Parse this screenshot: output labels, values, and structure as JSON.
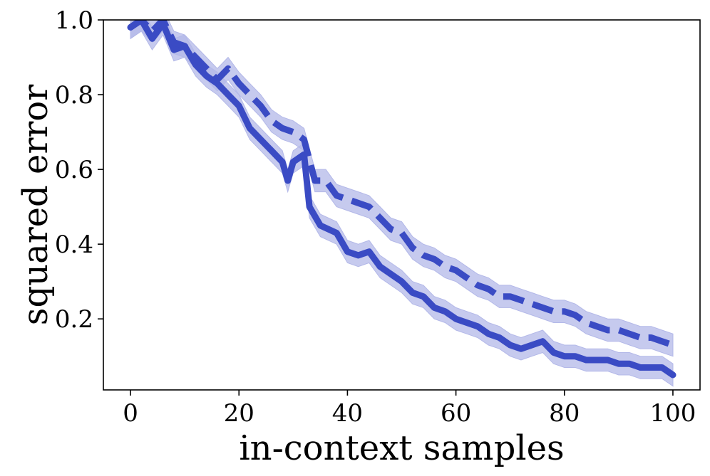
{
  "chart_data": {
    "type": "line",
    "title": "",
    "xlabel": "in-context samples",
    "ylabel": "squared error",
    "xlim": [
      -5,
      105
    ],
    "ylim": [
      0.01,
      1.0
    ],
    "x_ticks": [
      0,
      20,
      40,
      60,
      80,
      100
    ],
    "x_tick_labels": [
      "0",
      "20",
      "40",
      "60",
      "80",
      "100"
    ],
    "y_ticks": [
      0.2,
      0.4,
      0.6,
      0.8,
      1.0
    ],
    "y_tick_labels": [
      "0.2",
      "0.4",
      "0.6",
      "0.8",
      "1.0"
    ],
    "grid": false,
    "legend": "none",
    "colors": {
      "line": "#3a4bc4",
      "band": "#b3b8e8"
    },
    "series": [
      {
        "style": "solid",
        "x": [
          0,
          2,
          4,
          6,
          8,
          10,
          12,
          14,
          16,
          18,
          20,
          22,
          24,
          26,
          28,
          29,
          30,
          32,
          33,
          35,
          38,
          40,
          42,
          44,
          46,
          48,
          50,
          52,
          54,
          56,
          58,
          60,
          62,
          64,
          66,
          68,
          70,
          72,
          74,
          76,
          78,
          80,
          82,
          84,
          86,
          88,
          90,
          92,
          94,
          96,
          98,
          100
        ],
        "y": [
          0.98,
          1.0,
          0.95,
          0.99,
          0.92,
          0.93,
          0.88,
          0.85,
          0.83,
          0.8,
          0.77,
          0.71,
          0.68,
          0.65,
          0.62,
          0.57,
          0.62,
          0.64,
          0.5,
          0.45,
          0.43,
          0.38,
          0.37,
          0.38,
          0.34,
          0.32,
          0.3,
          0.27,
          0.26,
          0.23,
          0.22,
          0.2,
          0.19,
          0.18,
          0.16,
          0.15,
          0.13,
          0.12,
          0.13,
          0.14,
          0.11,
          0.1,
          0.1,
          0.09,
          0.09,
          0.09,
          0.08,
          0.08,
          0.07,
          0.07,
          0.07,
          0.05
        ],
        "band": 0.03
      },
      {
        "style": "dashed",
        "x": [
          0,
          2,
          4,
          6,
          8,
          10,
          12,
          14,
          16,
          18,
          20,
          22,
          24,
          26,
          28,
          30,
          32,
          34,
          36,
          38,
          40,
          42,
          44,
          46,
          48,
          50,
          52,
          54,
          56,
          58,
          60,
          62,
          64,
          66,
          68,
          70,
          72,
          74,
          76,
          78,
          80,
          82,
          84,
          86,
          88,
          90,
          92,
          94,
          96,
          98,
          100
        ],
        "y": [
          0.98,
          1.0,
          0.97,
          1.0,
          0.94,
          0.93,
          0.9,
          0.87,
          0.84,
          0.87,
          0.83,
          0.8,
          0.77,
          0.73,
          0.71,
          0.7,
          0.68,
          0.57,
          0.57,
          0.53,
          0.52,
          0.51,
          0.5,
          0.47,
          0.44,
          0.43,
          0.39,
          0.37,
          0.36,
          0.34,
          0.33,
          0.31,
          0.29,
          0.28,
          0.26,
          0.26,
          0.25,
          0.24,
          0.23,
          0.22,
          0.22,
          0.21,
          0.19,
          0.18,
          0.17,
          0.17,
          0.16,
          0.15,
          0.15,
          0.14,
          0.13
        ],
        "band": 0.03
      }
    ]
  }
}
